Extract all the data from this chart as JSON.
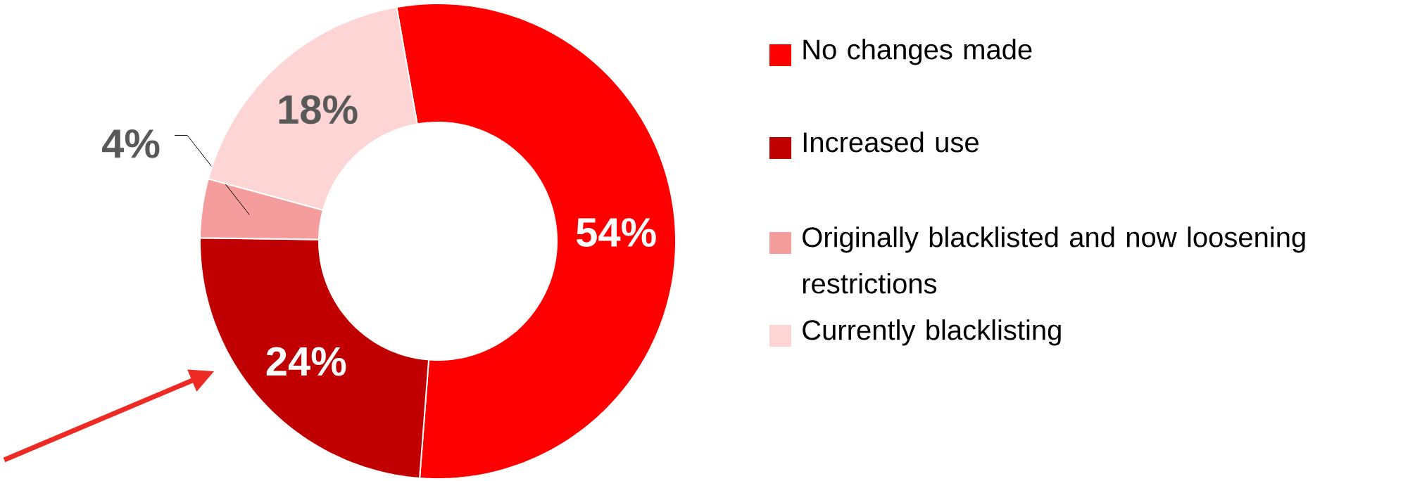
{
  "chart_data": {
    "type": "donut",
    "categories": [
      "No changes made",
      "Increased use",
      "Originally blacklisted and now loosening restrictions",
      "Currently blacklisting"
    ],
    "values": [
      54,
      24,
      4,
      18
    ],
    "colors": [
      "#ff0000",
      "#c00000",
      "#f59c9c",
      "#fdd5d5"
    ],
    "value_labels": [
      "54%",
      "24%",
      "4%",
      "18%"
    ],
    "legend": "right"
  }
}
